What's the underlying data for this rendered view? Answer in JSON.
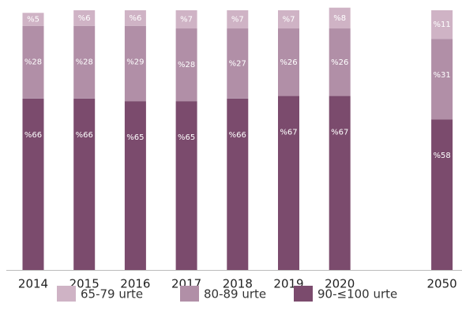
{
  "chart_data": {
    "type": "stacked-bar",
    "categories": [
      "2014",
      "2015",
      "2016",
      "2017",
      "2018",
      "2019",
      "2020",
      null,
      "2050"
    ],
    "ylim": [
      0,
      100
    ],
    "series": [
      {
        "name": "90-≤100 urte",
        "color": "#7b4b6d",
        "values": [
          66,
          66,
          65,
          65,
          66,
          67,
          67,
          null,
          58
        ],
        "value_labels": [
          "%66",
          "%66",
          "%65",
          "%65",
          "%66",
          "%67",
          "%67",
          null,
          "%58"
        ]
      },
      {
        "name": "80-89 urte",
        "color": "#b18fa7",
        "values": [
          28,
          28,
          29,
          28,
          27,
          26,
          26,
          null,
          31
        ],
        "value_labels": [
          "%28",
          "%28",
          "%29",
          "%28",
          "%27",
          "%26",
          "%26",
          null,
          "%31"
        ]
      },
      {
        "name": "65-79 urte",
        "color": "#cfb3c5",
        "values": [
          5,
          6,
          6,
          7,
          7,
          7,
          8,
          null,
          11
        ],
        "value_labels": [
          "%5",
          "%6",
          "%6",
          "%7",
          "%7",
          "%7",
          "%8",
          null,
          "%11"
        ]
      }
    ]
  }
}
